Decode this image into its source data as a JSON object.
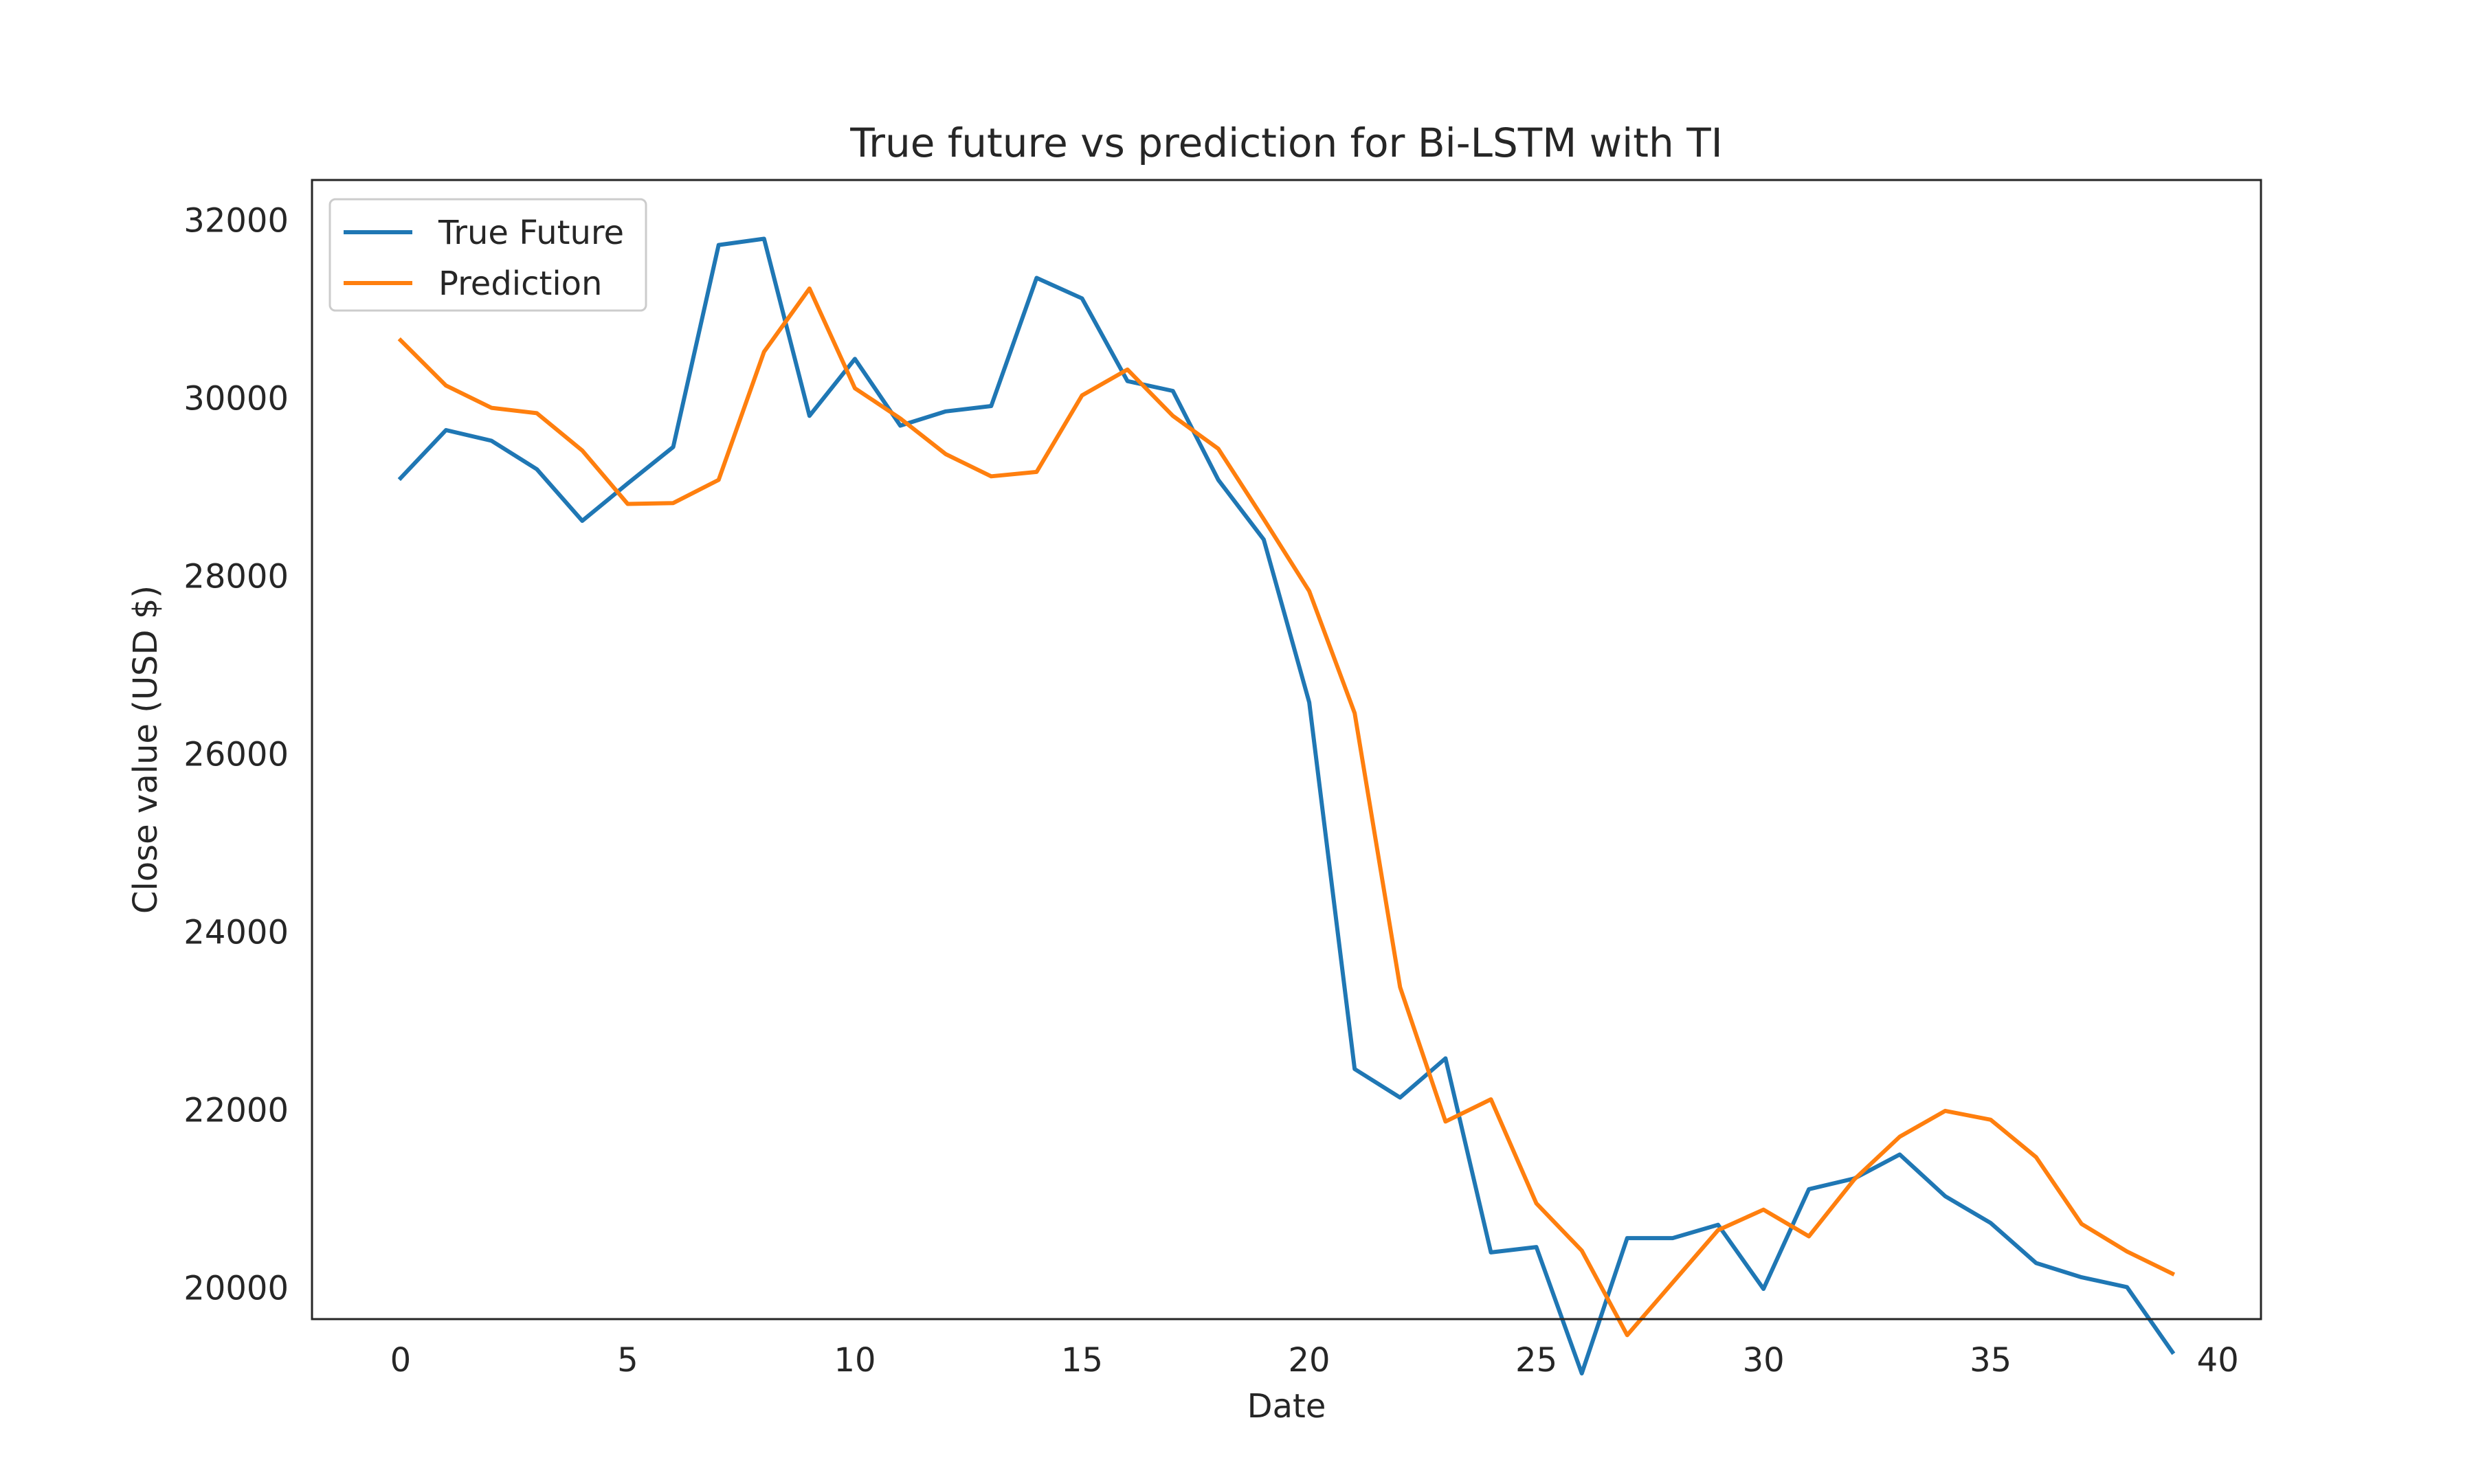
{
  "chart_data": {
    "type": "line",
    "title": "True future vs prediction for Bi-LSTM with TI",
    "xlabel": "Date",
    "ylabel": "Close value (USD $)",
    "xlim": [
      -1.95,
      40.95
    ],
    "ylim": [
      19650,
      32450
    ],
    "xticks": [
      0,
      5,
      10,
      15,
      20,
      25,
      30,
      35,
      40
    ],
    "yticks": [
      20000,
      22000,
      24000,
      26000,
      28000,
      30000,
      32000
    ],
    "grid": false,
    "legend_position": "upper left",
    "x": [
      0,
      1,
      2,
      3,
      4,
      5,
      6,
      7,
      8,
      9,
      10,
      11,
      12,
      13,
      14,
      15,
      16,
      17,
      18,
      19,
      20,
      21,
      22,
      23,
      24,
      25,
      26,
      27,
      28,
      29,
      30,
      31,
      32,
      33,
      34,
      35,
      36,
      37,
      38,
      39
    ],
    "series": [
      {
        "name": "True Future",
        "color": "#1f77b4",
        "values": [
          29100,
          29640,
          29520,
          29200,
          28620,
          29040,
          29450,
          31720,
          31790,
          29800,
          30440,
          29690,
          29850,
          29910,
          31350,
          31120,
          30190,
          30080,
          29080,
          28410,
          26580,
          22460,
          22140,
          22580,
          20400,
          20460,
          19040,
          20560,
          20560,
          20710,
          19990,
          21110,
          21230,
          21500,
          21030,
          20730,
          20280,
          20120,
          20010,
          19280
        ]
      },
      {
        "name": "Prediction",
        "color": "#ff7f0e",
        "values": [
          30650,
          30140,
          29890,
          29830,
          29410,
          28810,
          28820,
          29080,
          30520,
          31230,
          30110,
          29770,
          29370,
          29120,
          29170,
          30030,
          30320,
          29800,
          29430,
          28640,
          27830,
          26460,
          23380,
          21870,
          22120,
          20950,
          20420,
          19470,
          20060,
          20650,
          20880,
          20580,
          21220,
          21700,
          21990,
          21890,
          21470,
          20720,
          20410,
          20160
        ]
      }
    ]
  }
}
